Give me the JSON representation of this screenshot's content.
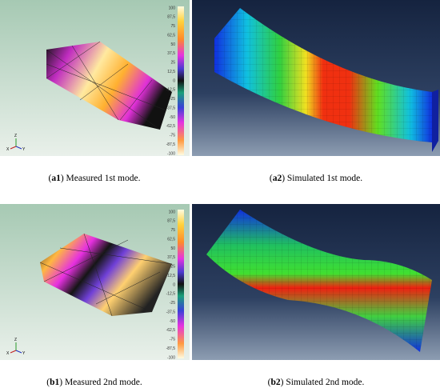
{
  "panels": [
    {
      "caption": {
        "before": "(",
        "bold": "a1",
        "after": ") Measured 1st mode."
      },
      "colorbar_labels": [
        "100",
        "87,5",
        "75",
        "62,5",
        "50",
        "37,5",
        "25",
        "12,5",
        "0",
        "-12,5",
        "-25",
        "-37,5",
        "-50",
        "-62,5",
        "-75",
        "-87,5",
        "-100"
      ],
      "triad": [
        "Z",
        "X",
        "Y"
      ]
    },
    {
      "caption": {
        "before": "(",
        "bold": "a2",
        "after": ") Simulated 1st mode."
      }
    },
    {
      "caption": {
        "before": "(",
        "bold": "b1",
        "after": ") Measured 2nd mode."
      },
      "colorbar_labels": [
        "100",
        "87,5",
        "75",
        "62,5",
        "50",
        "37,5",
        "25",
        "12,5",
        "0",
        "-12,5",
        "-25",
        "-37,5",
        "-50",
        "-62,5",
        "-75",
        "-87,5",
        "-100"
      ],
      "triad": [
        "Z",
        "X",
        "Y"
      ]
    },
    {
      "caption": {
        "before": "(",
        "bold": "b2",
        "after": ") Simulated 2nd mode."
      }
    }
  ]
}
